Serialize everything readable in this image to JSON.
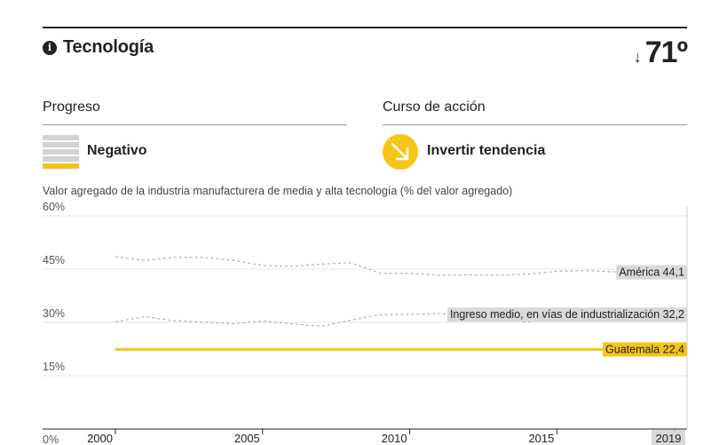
{
  "header": {
    "title": "Tecnología",
    "rank_arrow": "↓",
    "rank": "71º",
    "info_icon": "info-icon"
  },
  "progress": {
    "heading": "Progreso",
    "label": "Negativo",
    "icon": "progress-bars-icon",
    "level": 1,
    "levels": 5
  },
  "action": {
    "heading": "Curso de acción",
    "label": "Invertir tendencia",
    "icon": "arrow-down-right-icon"
  },
  "colors": {
    "accent": "#f5c518",
    "reference_line": "#b0b0b0",
    "label_bg": "#d9d9d9"
  },
  "chart_data": {
    "type": "line",
    "title": "Valor agregado de la industria manufacturera de media y alta tecnología (% del valor agregado)",
    "ylim": [
      0,
      60
    ],
    "y_ticks": [
      "60%",
      "45%",
      "30%",
      "15%",
      "0%"
    ],
    "x_ticks": [
      "2000",
      "2005",
      "2010",
      "2015",
      "2019"
    ],
    "x_highlight": "2019",
    "x": [
      2000,
      2001,
      2002,
      2003,
      2004,
      2005,
      2006,
      2007,
      2008,
      2009,
      2010,
      2011,
      2012,
      2013,
      2014,
      2015,
      2016,
      2017,
      2018,
      2019
    ],
    "series": [
      {
        "name": "América",
        "label": "América 44,1",
        "style": "dashed",
        "values": [
          48.5,
          47.5,
          48.3,
          48.3,
          47.5,
          46.0,
          45.8,
          46.4,
          46.8,
          43.8,
          43.8,
          43.3,
          43.4,
          43.3,
          43.6,
          44.4,
          44.6,
          44.2,
          44.2,
          44.1
        ]
      },
      {
        "name": "Ingreso medio, en vías de industrialización",
        "label": "Ingreso medio, en vías de industrialización 32,2",
        "style": "dashed",
        "values": [
          30.2,
          31.6,
          30.5,
          30.1,
          29.6,
          30.4,
          29.6,
          28.9,
          30.6,
          32.2,
          32.3,
          32.5,
          32.0,
          31.2,
          30.0,
          31.5,
          32.0,
          32.2,
          32.2,
          32.2
        ]
      },
      {
        "name": "Guatemala",
        "label": "Guatemala 22,4",
        "style": "solid",
        "values": [
          22.4,
          22.4,
          22.4,
          22.4,
          22.4,
          22.4,
          22.4,
          22.4,
          22.4,
          22.4,
          22.4,
          22.4,
          22.4,
          22.4,
          22.4,
          22.4,
          22.4,
          22.4,
          22.4,
          22.4
        ]
      }
    ]
  }
}
